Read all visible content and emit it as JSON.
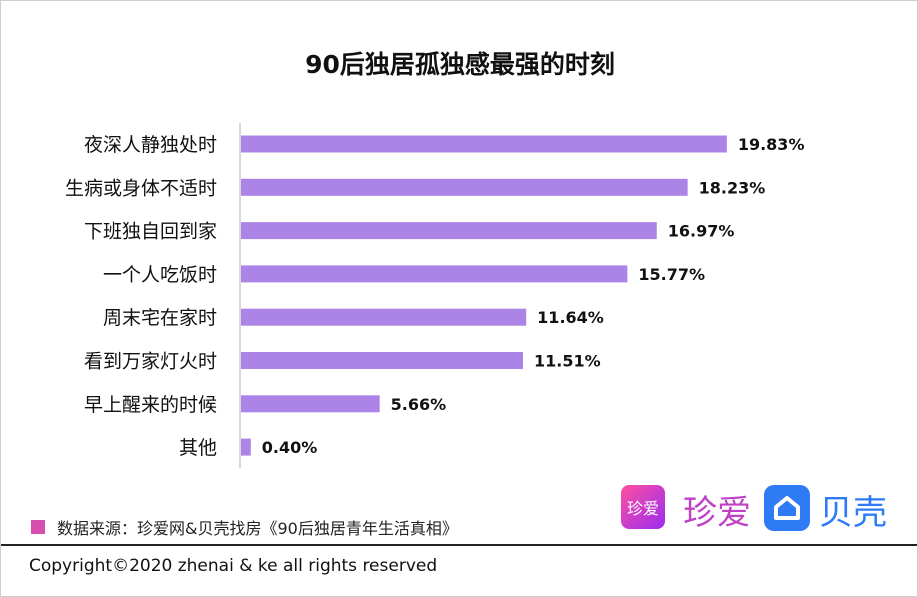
{
  "chart_data": {
    "type": "bar",
    "orientation": "horizontal",
    "title": "90后独居孤独感最强的时刻",
    "categories": [
      "夜深人静独处时",
      "生病或身体不适时",
      "下班独自回到家",
      "一个人吃饭时",
      "周末宅在家时",
      "看到万家灯火时",
      "早上醒来的时候",
      "其他"
    ],
    "values": [
      19.83,
      18.23,
      16.97,
      15.77,
      11.64,
      11.51,
      5.66,
      0.4
    ],
    "data_labels": [
      "19.83%",
      "18.23%",
      "16.97%",
      "15.77%",
      "11.64%",
      "11.51%",
      "5.66%",
      "0.40%"
    ],
    "unit": "%",
    "bar_color": "#ac84e8",
    "grid": false
  },
  "source": "数据来源：珍爱网&贝壳找房《90后独居青年生活真相》",
  "source_color": "#d64fb0",
  "logos": {
    "zhenai_icon": "珍爱",
    "zhenai_text": "珍爱",
    "ke_text": "贝壳"
  },
  "copyright": "Copyright©2020 zhenai & ke all rights reserved"
}
